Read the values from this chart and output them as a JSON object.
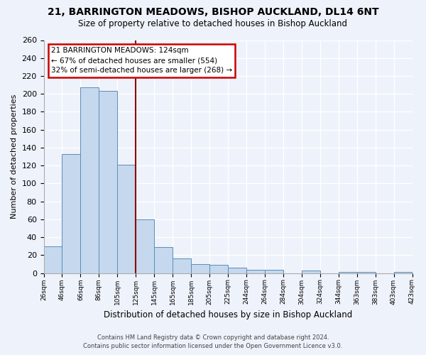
{
  "title": "21, BARRINGTON MEADOWS, BISHOP AUCKLAND, DL14 6NT",
  "subtitle": "Size of property relative to detached houses in Bishop Auckland",
  "xlabel": "Distribution of detached houses by size in Bishop Auckland",
  "ylabel": "Number of detached properties",
  "bin_labels": [
    "26sqm",
    "46sqm",
    "66sqm",
    "86sqm",
    "105sqm",
    "125sqm",
    "145sqm",
    "165sqm",
    "185sqm",
    "205sqm",
    "225sqm",
    "244sqm",
    "264sqm",
    "284sqm",
    "304sqm",
    "324sqm",
    "344sqm",
    "363sqm",
    "383sqm",
    "403sqm",
    "423sqm"
  ],
  "bar_values": [
    30,
    133,
    207,
    203,
    121,
    60,
    29,
    16,
    10,
    9,
    6,
    4,
    4,
    0,
    3,
    0,
    1,
    1,
    0,
    1
  ],
  "bar_color": "#c5d8ee",
  "bar_edge_color": "#5b8db8",
  "vline_x_index": 5,
  "vline_color": "#8b0000",
  "ylim": [
    0,
    260
  ],
  "yticks": [
    0,
    20,
    40,
    60,
    80,
    100,
    120,
    140,
    160,
    180,
    200,
    220,
    240,
    260
  ],
  "annotation_title": "21 BARRINGTON MEADOWS: 124sqm",
  "annotation_line1": "← 67% of detached houses are smaller (554)",
  "annotation_line2": "32% of semi-detached houses are larger (268) →",
  "annotation_box_color": "#ffffff",
  "annotation_box_edge": "#cc0000",
  "footer_line1": "Contains HM Land Registry data © Crown copyright and database right 2024.",
  "footer_line2": "Contains public sector information licensed under the Open Government Licence v3.0.",
  "background_color": "#eef2fa"
}
